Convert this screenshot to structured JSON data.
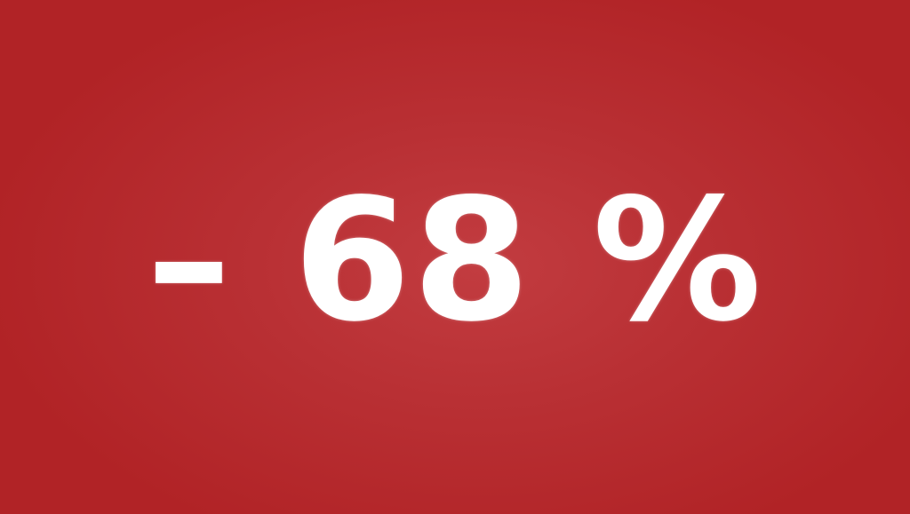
{
  "badge": {
    "text": "– 68 %"
  },
  "colors": {
    "background": "#b12326",
    "background_highlight": "#c23c40",
    "text": "#ffffff"
  }
}
